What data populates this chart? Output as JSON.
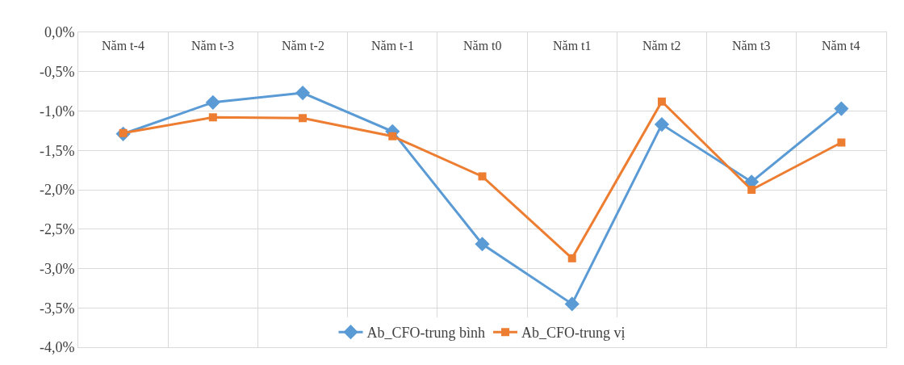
{
  "chart_data": {
    "type": "line",
    "categories": [
      "Năm t-4",
      "Năm t-3",
      "Năm t-2",
      "Năm t-1",
      "Năm t0",
      "Năm t1",
      "Năm t2",
      "Năm t3",
      "Năm t4"
    ],
    "series": [
      {
        "name": "Ab_CFO-trung bình",
        "color": "#5b9bd5",
        "marker": "diamond",
        "values": [
          -1.29,
          -0.89,
          -0.77,
          -1.26,
          -2.69,
          -3.45,
          -1.17,
          -1.9,
          -0.97
        ]
      },
      {
        "name": "Ab_CFO-trung vị",
        "color": "#ed7d31",
        "marker": "square",
        "values": [
          -1.28,
          -1.08,
          -1.09,
          -1.32,
          -1.83,
          -2.87,
          -0.88,
          -2.0,
          -1.4
        ]
      }
    ],
    "ylim": [
      -4,
      0
    ],
    "yticks": [
      {
        "value": 0,
        "label": "0,0%"
      },
      {
        "value": -0.5,
        "label": "-0,5%"
      },
      {
        "value": -1,
        "label": "-1,0%"
      },
      {
        "value": -1.5,
        "label": "-1,5%"
      },
      {
        "value": -2,
        "label": "-2,0%"
      },
      {
        "value": -2.5,
        "label": "-2,5%"
      },
      {
        "value": -3,
        "label": "-3,0%"
      },
      {
        "value": -3.5,
        "label": "-3,5%"
      },
      {
        "value": -4,
        "label": "-4,0%"
      }
    ],
    "grid": true,
    "legend": "bottom",
    "line_style": "solid"
  }
}
